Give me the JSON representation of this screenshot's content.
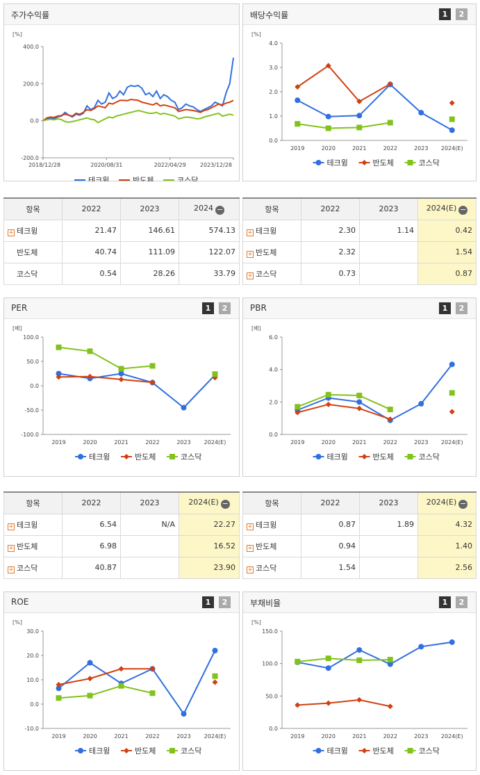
{
  "colors": {
    "tech": "#2f6fe0",
    "semi": "#d04010",
    "kosdaq": "#82c21c"
  },
  "legend": [
    "테크윙",
    "반도체",
    "코스닥"
  ],
  "panels": {
    "stock": {
      "title": "주가수익률",
      "unit": "[%]"
    },
    "dividend": {
      "title": "배당수익률",
      "unit": "[%]"
    },
    "per": {
      "title": "PER",
      "unit": "[배]"
    },
    "pbr": {
      "title": "PBR",
      "unit": "[배]"
    },
    "roe": {
      "title": "ROE",
      "unit": "[%]"
    },
    "debt": {
      "title": "부채비율",
      "unit": "[%]"
    }
  },
  "pager": {
    "p1": "1",
    "p2": "2"
  },
  "chart_data": [
    {
      "id": "stock",
      "type": "line",
      "title": "주가수익률",
      "ylabel": "[%]",
      "yticks": [
        "400.0",
        "200.0",
        "0.0",
        "-200.0"
      ],
      "ylim": [
        -200,
        400
      ],
      "xticks": [
        "2018/12/28",
        "2020/08/31",
        "2022/04/29",
        "2023/12/28"
      ],
      "series": [
        {
          "name": "테크윙",
          "values": [
            0,
            10,
            15,
            10,
            20,
            25,
            45,
            30,
            20,
            35,
            30,
            40,
            80,
            60,
            70,
            110,
            90,
            100,
            150,
            120,
            130,
            160,
            140,
            180,
            190,
            185,
            190,
            175,
            140,
            150,
            130,
            160,
            120,
            140,
            130,
            110,
            100,
            60,
            70,
            90,
            80,
            75,
            60,
            50,
            60,
            70,
            80,
            100,
            90,
            80,
            150,
            200,
            340
          ]
        },
        {
          "name": "반도체",
          "values": [
            0,
            15,
            20,
            18,
            25,
            28,
            35,
            30,
            25,
            40,
            35,
            45,
            60,
            55,
            65,
            80,
            75,
            70,
            95,
            90,
            100,
            110,
            110,
            108,
            115,
            112,
            110,
            100,
            95,
            90,
            85,
            95,
            80,
            85,
            80,
            75,
            70,
            50,
            55,
            60,
            58,
            55,
            50,
            45,
            55,
            60,
            70,
            80,
            90,
            85,
            95,
            100,
            110
          ]
        },
        {
          "name": "코스닥",
          "values": [
            0,
            5,
            8,
            5,
            10,
            6,
            -5,
            -8,
            -5,
            0,
            5,
            10,
            15,
            8,
            5,
            -10,
            0,
            10,
            20,
            15,
            25,
            30,
            35,
            40,
            45,
            50,
            55,
            50,
            45,
            40,
            40,
            45,
            35,
            40,
            35,
            30,
            25,
            10,
            15,
            20,
            18,
            15,
            10,
            12,
            20,
            25,
            30,
            35,
            40,
            25,
            30,
            35,
            30
          ]
        }
      ]
    },
    {
      "id": "dividend",
      "type": "line",
      "title": "배당수익률",
      "ylabel": "[%]",
      "categories": [
        "2019",
        "2020",
        "2021",
        "2022",
        "2023",
        "2024(E)"
      ],
      "yticks": [
        "4.0",
        "3.0",
        "2.0",
        "1.0",
        "0.0"
      ],
      "ylim": [
        0,
        4
      ],
      "series": [
        {
          "name": "테크윙",
          "values": [
            1.65,
            0.98,
            1.02,
            2.3,
            1.14,
            0.42
          ]
        },
        {
          "name": "반도체",
          "values": [
            2.2,
            3.07,
            1.6,
            2.32,
            null,
            1.54
          ]
        },
        {
          "name": "코스닥",
          "values": [
            0.68,
            0.5,
            0.53,
            0.73,
            null,
            0.87
          ]
        }
      ]
    },
    {
      "id": "per",
      "type": "line",
      "title": "PER",
      "ylabel": "[배]",
      "categories": [
        "2019",
        "2020",
        "2021",
        "2022",
        "2023",
        "2024(E)"
      ],
      "yticks": [
        "100.0",
        "50.0",
        "0.0",
        "-50.0",
        "-100.0"
      ],
      "ylim": [
        -100,
        100
      ],
      "series": [
        {
          "name": "테크윙",
          "values": [
            25,
            15,
            25,
            6.54,
            -45,
            22.27
          ]
        },
        {
          "name": "반도체",
          "values": [
            18,
            19,
            13,
            6.98,
            null,
            16.52
          ]
        },
        {
          "name": "코스닥",
          "values": [
            79,
            71,
            35,
            40.87,
            null,
            23.9
          ]
        }
      ]
    },
    {
      "id": "pbr",
      "type": "line",
      "title": "PBR",
      "ylabel": "[배]",
      "categories": [
        "2019",
        "2020",
        "2021",
        "2022",
        "2023",
        "2024(E)"
      ],
      "yticks": [
        "6.0",
        "4.0",
        "2.0",
        "0.0"
      ],
      "ylim": [
        0,
        6
      ],
      "series": [
        {
          "name": "테크윙",
          "values": [
            1.5,
            2.25,
            2.0,
            0.87,
            1.89,
            4.32
          ]
        },
        {
          "name": "반도체",
          "values": [
            1.35,
            1.85,
            1.6,
            0.94,
            null,
            1.4
          ]
        },
        {
          "name": "코스닥",
          "values": [
            1.7,
            2.45,
            2.4,
            1.54,
            null,
            2.56
          ]
        }
      ]
    },
    {
      "id": "roe",
      "type": "line",
      "title": "ROE",
      "ylabel": "[%]",
      "categories": [
        "2019",
        "2020",
        "2021",
        "2022",
        "2023",
        "2024(E)"
      ],
      "yticks": [
        "30.0",
        "20.0",
        "10.0",
        "0.0",
        "-10.0"
      ],
      "ylim": [
        -10,
        30
      ],
      "series": [
        {
          "name": "테크윙",
          "values": [
            6.5,
            17,
            8.5,
            14.5,
            -4,
            22
          ]
        },
        {
          "name": "반도체",
          "values": [
            8,
            10.5,
            14.5,
            14.5,
            null,
            9
          ]
        },
        {
          "name": "코스닥",
          "values": [
            2.5,
            3.5,
            7.5,
            4.5,
            null,
            11.5
          ]
        }
      ]
    },
    {
      "id": "debt",
      "type": "line",
      "title": "부채비율",
      "ylabel": "[%]",
      "categories": [
        "2019",
        "2020",
        "2021",
        "2022",
        "2023",
        "2024(E)"
      ],
      "yticks": [
        "150.0",
        "100.0",
        "50.0",
        "0.0"
      ],
      "ylim": [
        0,
        150
      ],
      "series": [
        {
          "name": "테크윙",
          "values": [
            102,
            93,
            121,
            99,
            126,
            133
          ]
        },
        {
          "name": "반도체",
          "values": [
            36,
            39,
            44,
            34,
            null,
            null
          ]
        },
        {
          "name": "코스닥",
          "values": [
            103,
            108,
            105,
            106,
            null,
            null
          ]
        }
      ]
    }
  ],
  "tables": {
    "stock": {
      "headers": [
        "항목",
        "2022",
        "2023",
        "2024"
      ],
      "rows": [
        {
          "label": "테크윙",
          "values": [
            "21.47",
            "146.61",
            "574.13"
          ]
        },
        {
          "label": "반도체",
          "values": [
            "40.74",
            "111.09",
            "122.07"
          ]
        },
        {
          "label": "코스닥",
          "values": [
            "0.54",
            "28.26",
            "33.79"
          ]
        }
      ]
    },
    "dividend": {
      "headers": [
        "항목",
        "2022",
        "2023",
        "2024(E)"
      ],
      "rows": [
        {
          "label": "테크윙",
          "values": [
            "2.30",
            "1.14",
            "0.42"
          ]
        },
        {
          "label": "반도체",
          "values": [
            "2.32",
            "",
            "1.54"
          ]
        },
        {
          "label": "코스닥",
          "values": [
            "0.73",
            "",
            "0.87"
          ]
        }
      ]
    },
    "per": {
      "headers": [
        "항목",
        "2022",
        "2023",
        "2024(E)"
      ],
      "rows": [
        {
          "label": "테크윙",
          "values": [
            "6.54",
            "N/A",
            "22.27"
          ]
        },
        {
          "label": "반도체",
          "values": [
            "6.98",
            "",
            "16.52"
          ]
        },
        {
          "label": "코스닥",
          "values": [
            "40.87",
            "",
            "23.90"
          ]
        }
      ]
    },
    "pbr": {
      "headers": [
        "항목",
        "2022",
        "2023",
        "2024(E)"
      ],
      "rows": [
        {
          "label": "테크윙",
          "values": [
            "0.87",
            "1.89",
            "4.32"
          ]
        },
        {
          "label": "반도체",
          "values": [
            "0.94",
            "",
            "1.40"
          ]
        },
        {
          "label": "코스닥",
          "values": [
            "1.54",
            "",
            "2.56"
          ]
        }
      ]
    }
  }
}
